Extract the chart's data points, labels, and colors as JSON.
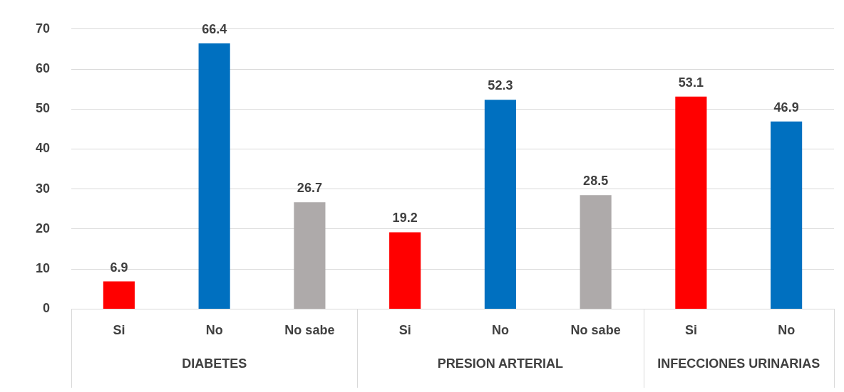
{
  "chart_data": {
    "type": "bar",
    "categories": [
      "Si",
      "No",
      "No sabe",
      "Si",
      "No",
      "No sabe",
      "Si",
      "No"
    ],
    "values": [
      6.9,
      66.4,
      26.7,
      19.2,
      52.3,
      28.5,
      53.1,
      46.9
    ],
    "colors": [
      "#ff0000",
      "#0070c0",
      "#aeaaaa",
      "#ff0000",
      "#0070c0",
      "#aeaaaa",
      "#ff0000",
      "#0070c0"
    ],
    "annotations": [
      "DIABETES",
      "PRESION ARTERIAL",
      "INFECCIONES URINARIAS"
    ],
    "ylim": [
      0,
      70
    ],
    "yticks": [
      0,
      10,
      20,
      30,
      40,
      50,
      60,
      70
    ],
    "grid": "y",
    "legend": false,
    "data_labels": true
  }
}
